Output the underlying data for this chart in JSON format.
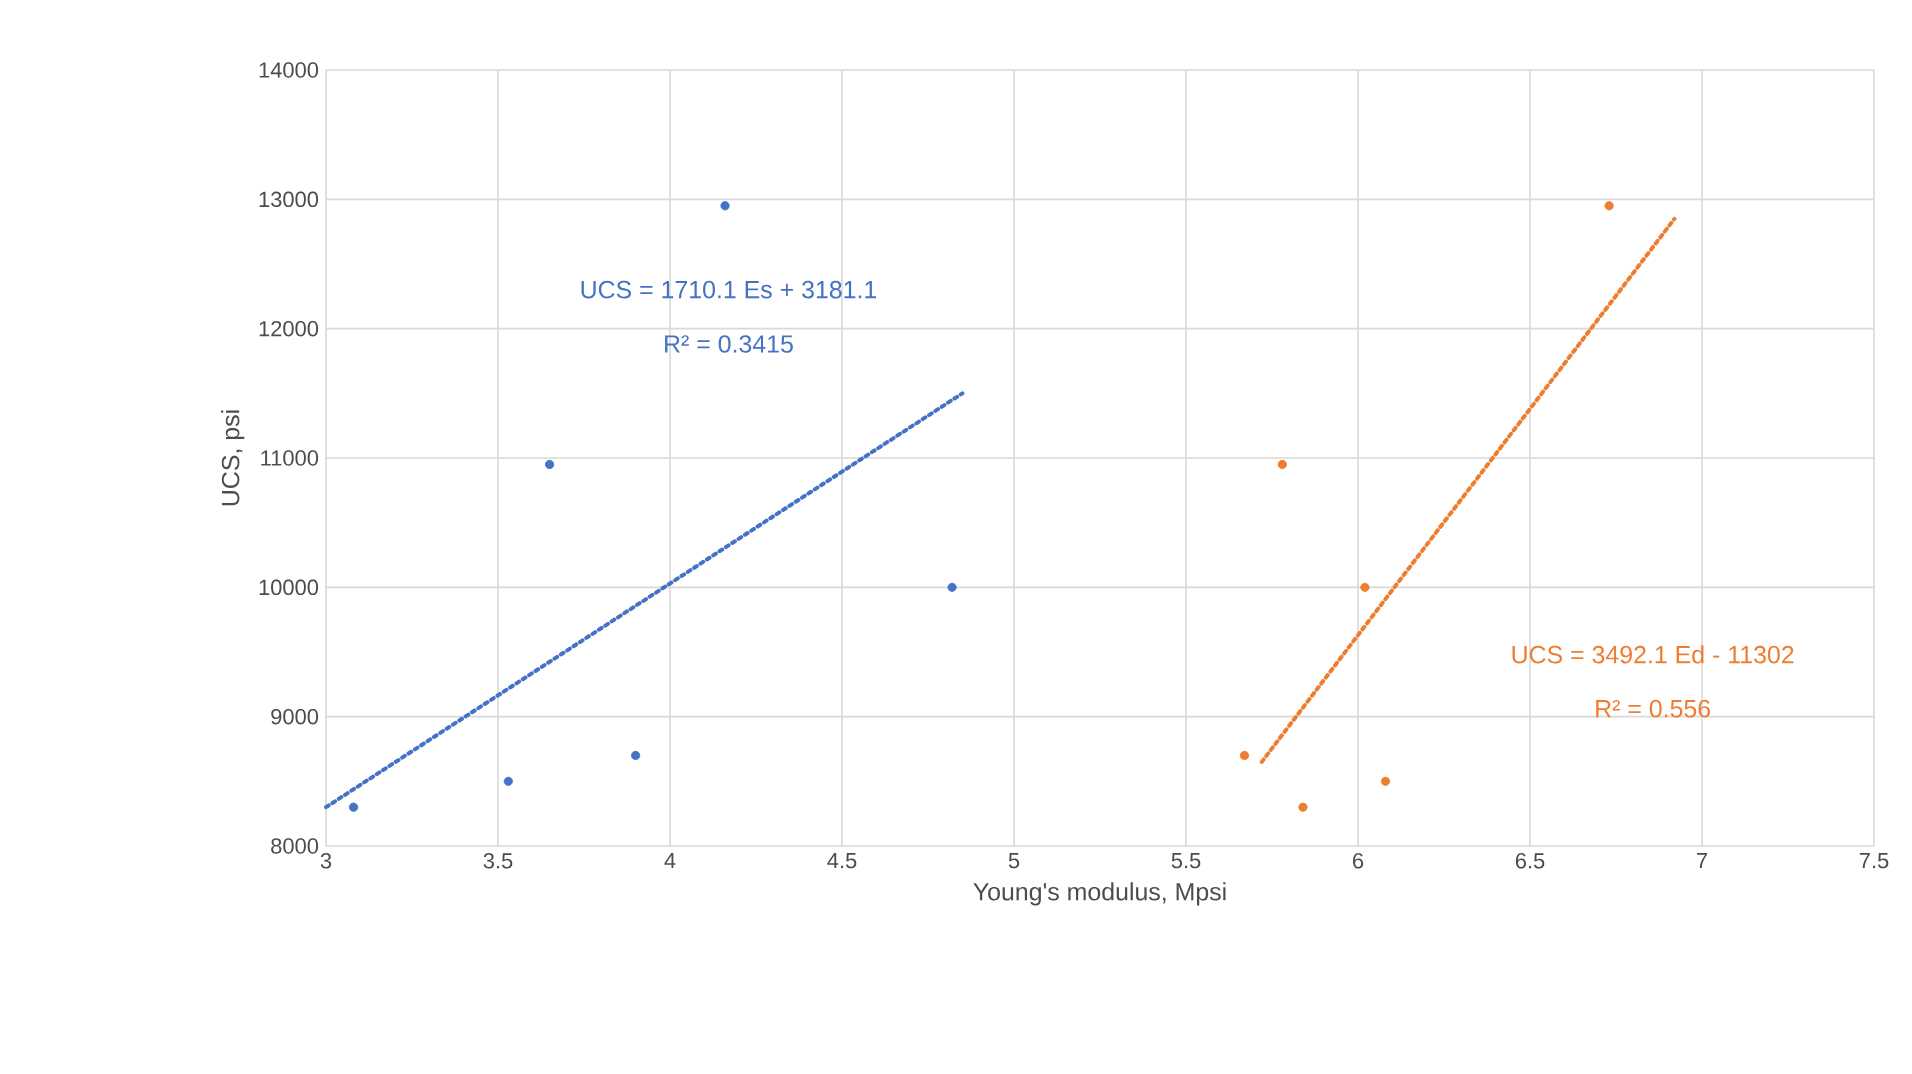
{
  "chart_data": {
    "type": "scatter",
    "xlabel": "Young's modulus, Mpsi",
    "ylabel": "UCS, psi",
    "series": [
      {
        "color": "#4472c4",
        "marker": "circle",
        "x": [
          3.08,
          3.65,
          4.16,
          3.9,
          3.53,
          4.82
        ],
        "values": [
          8300,
          10950,
          12950,
          8700,
          8500,
          10000
        ]
      },
      {
        "color": "#ed7d31",
        "marker": "circle",
        "x": [
          5.67,
          5.78,
          5.84,
          6.02,
          6.08,
          6.73
        ],
        "values": [
          8700,
          10950,
          8300,
          10000,
          8500,
          12950
        ]
      },
      {
        "type": "line",
        "line_style": "dotted",
        "marker": "none",
        "color": "#4472c4",
        "x": [
          3,
          4.85
        ],
        "values": [
          8300,
          11500
        ]
      },
      {
        "type": "line",
        "line_style": "dotted",
        "marker": "none",
        "color": "#ed7d31",
        "x": [
          5.72,
          6.92
        ],
        "values": [
          8650,
          12850
        ]
      }
    ],
    "annotations": [
      "UCS = 1710.1 Es + 3181.1",
      "R² = 0.3415",
      "UCS = 3492.1 Ed - 11302",
      "R² = 0.556"
    ],
    "xlim": [
      3,
      7.5
    ],
    "ylim": [
      8000,
      14000
    ],
    "xticks": [
      3,
      3.5,
      4,
      4.5,
      5,
      5.5,
      6,
      6.5,
      7,
      7.5
    ],
    "yticks": [
      8000,
      9000,
      10000,
      11000,
      12000,
      13000,
      14000
    ],
    "grid": true
  }
}
